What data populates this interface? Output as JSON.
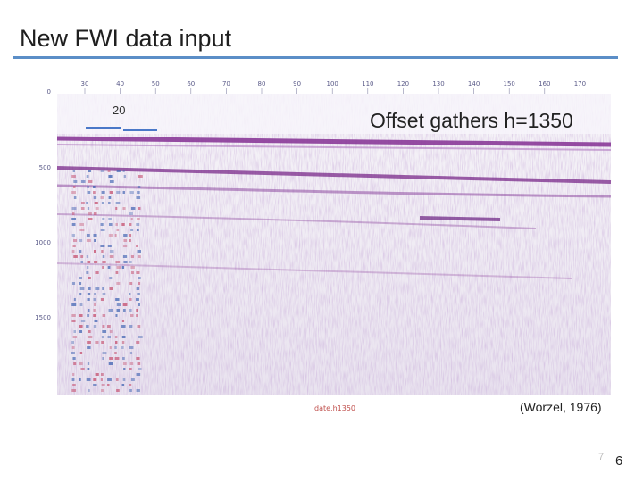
{
  "slide": {
    "title": "New FWI data input",
    "offset_label": "Offset gathers h=1350",
    "trace_label": "20",
    "citation": "(Worzel, 1976)",
    "figure_caption": "date,h1350",
    "page_number": "6",
    "faint_number": "7"
  },
  "seismic": {
    "x_ticks": [
      "30",
      "40",
      "50",
      "60",
      "70",
      "80",
      "90",
      "100",
      "110",
      "120",
      "130",
      "140",
      "150",
      "160",
      "170"
    ],
    "y_ticks": [
      "0",
      "500",
      "1000",
      "1500"
    ],
    "colors": {
      "positive": "#7a2a8a",
      "negative": "#3a5fb0",
      "background": "#eeeaf3",
      "title_rule": "#5b8ec7"
    }
  }
}
